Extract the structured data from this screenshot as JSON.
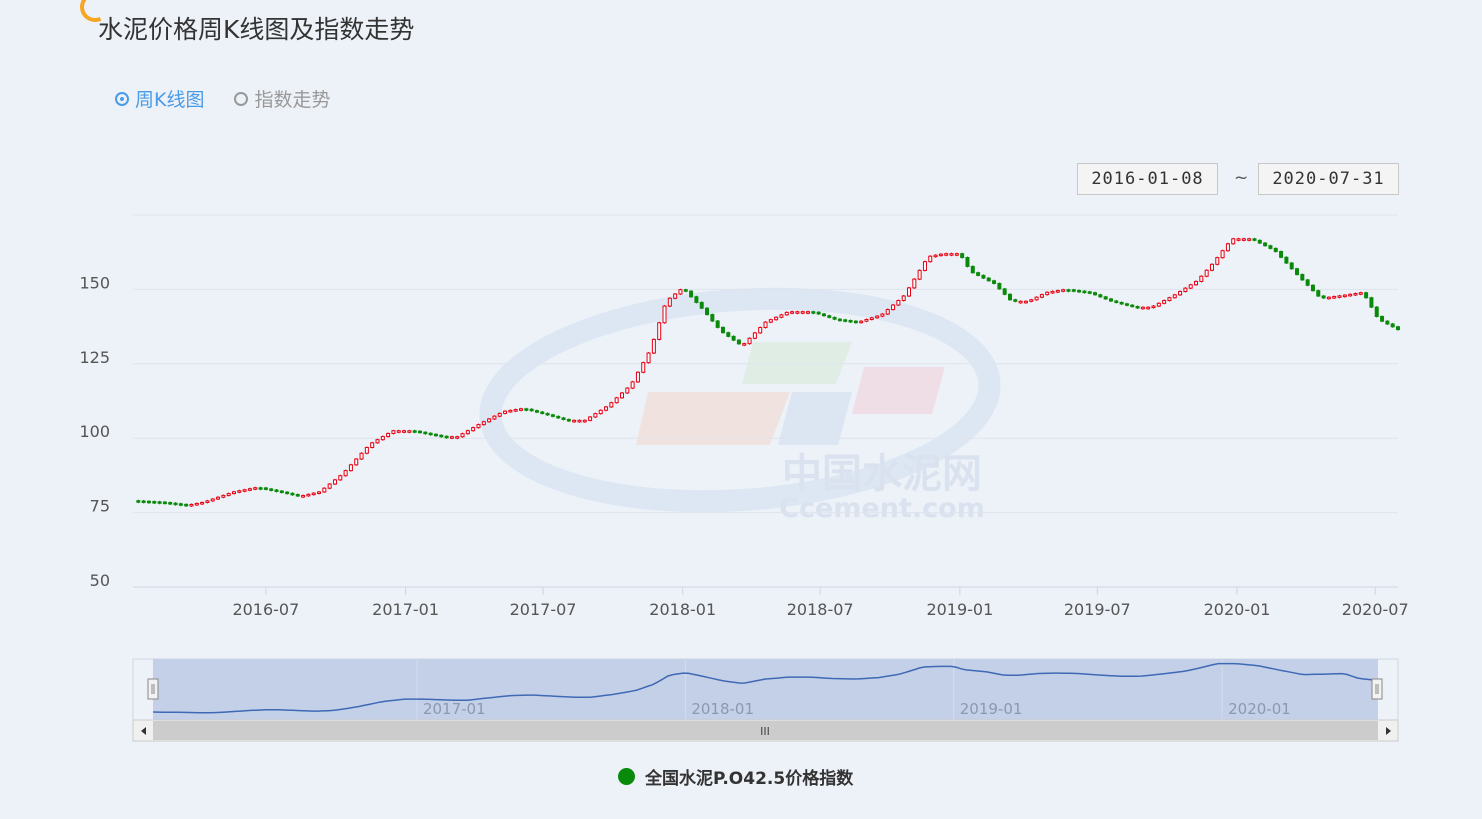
{
  "title": "水泥价格周K线图及指数走势",
  "tabs": [
    {
      "label": "周K线图",
      "active": true
    },
    {
      "label": "指数走势",
      "active": false
    }
  ],
  "date_range": {
    "start": "2016-01-08",
    "separator": "~",
    "end": "2020-07-31"
  },
  "watermark": {
    "cn": "中国水泥网",
    "en": "Ccement.com"
  },
  "navigator": {
    "labels": [
      "2017-01",
      "2018-01",
      "2019-01",
      "2020-01"
    ],
    "handle_glyph": "III"
  },
  "legend": {
    "label": "全国水泥P.O42.5价格指数",
    "color": "#0a8a0a"
  },
  "colors": {
    "up": "#e60012",
    "down": "#0a8a0a",
    "nav_fill": "#c4d0e8",
    "nav_line": "#3f69b5"
  },
  "chart_data": {
    "type": "candlestick",
    "y_ticks": [
      "50",
      "75",
      "100",
      "125",
      "150"
    ],
    "x_ticks": [
      "2016-07",
      "2017-01",
      "2017-07",
      "2018-01",
      "2018-07",
      "2019-01",
      "2019-07",
      "2020-01",
      "2020-07"
    ],
    "ylim": [
      50,
      175
    ],
    "x_range": [
      "2016-01-08",
      "2020-07-31"
    ],
    "anchors": [
      [
        "2016-01-08",
        79
      ],
      [
        "2016-02-15",
        78.5
      ],
      [
        "2016-03-20",
        77.5
      ],
      [
        "2016-04-10",
        78.5
      ],
      [
        "2016-05-20",
        82
      ],
      [
        "2016-06-20",
        83.5
      ],
      [
        "2016-07-20",
        82
      ],
      [
        "2016-08-15",
        80.5
      ],
      [
        "2016-09-10",
        82
      ],
      [
        "2016-10-10",
        88
      ],
      [
        "2016-11-15",
        98
      ],
      [
        "2016-12-15",
        102.5
      ],
      [
        "2017-01-10",
        102.5
      ],
      [
        "2017-02-20",
        100.5
      ],
      [
        "2017-03-10",
        100.5
      ],
      [
        "2017-04-10",
        105
      ],
      [
        "2017-05-10",
        109
      ],
      [
        "2017-06-05",
        110
      ],
      [
        "2017-07-05",
        108
      ],
      [
        "2017-08-01",
        106
      ],
      [
        "2017-08-25",
        106
      ],
      [
        "2017-09-25",
        111
      ],
      [
        "2017-10-25",
        118
      ],
      [
        "2017-11-20",
        130
      ],
      [
        "2017-12-10",
        146
      ],
      [
        "2018-01-01",
        150.5
      ],
      [
        "2018-01-25",
        144
      ],
      [
        "2018-02-20",
        136
      ],
      [
        "2018-03-20",
        131
      ],
      [
        "2018-04-20",
        139
      ],
      [
        "2018-05-20",
        142.5
      ],
      [
        "2018-06-20",
        142.5
      ],
      [
        "2018-07-20",
        140
      ],
      [
        "2018-08-20",
        139
      ],
      [
        "2018-09-20",
        141.5
      ],
      [
        "2018-10-20",
        148
      ],
      [
        "2018-11-20",
        161
      ],
      [
        "2018-12-10",
        162
      ],
      [
        "2019-01-01",
        162
      ],
      [
        "2019-01-15",
        156
      ],
      [
        "2019-02-15",
        152
      ],
      [
        "2019-03-10",
        146
      ],
      [
        "2019-04-01",
        146
      ],
      [
        "2019-04-25",
        149
      ],
      [
        "2019-05-20",
        150
      ],
      [
        "2019-06-20",
        149
      ],
      [
        "2019-07-20",
        146
      ],
      [
        "2019-08-20",
        144
      ],
      [
        "2019-09-10",
        144
      ],
      [
        "2019-10-10",
        148
      ],
      [
        "2019-11-10",
        153
      ],
      [
        "2019-12-01",
        159
      ],
      [
        "2019-12-25",
        167
      ],
      [
        "2020-01-20",
        167
      ],
      [
        "2020-02-20",
        163
      ],
      [
        "2020-03-20",
        155
      ],
      [
        "2020-04-20",
        147
      ],
      [
        "2020-05-20",
        148
      ],
      [
        "2020-06-15",
        149
      ],
      [
        "2020-07-05",
        140
      ],
      [
        "2020-07-31",
        136.5
      ]
    ]
  }
}
